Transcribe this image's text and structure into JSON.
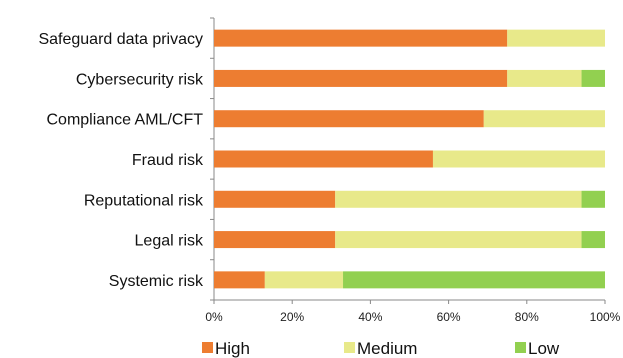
{
  "chart_data": {
    "type": "bar",
    "orientation": "horizontal",
    "stacked": true,
    "categories": [
      "Safeguard data privacy",
      "Cybersecurity risk",
      "Compliance AML/CFT",
      "Fraud risk",
      "Reputational risk",
      "Legal risk",
      "Systemic risk"
    ],
    "series": [
      {
        "name": "High",
        "color": "#ED7D31",
        "values": [
          75,
          75,
          69,
          56,
          31,
          31,
          13
        ]
      },
      {
        "name": "Medium",
        "color": "#E8E98A",
        "values": [
          25,
          19,
          31,
          44,
          63,
          63,
          20
        ]
      },
      {
        "name": "Low",
        "color": "#92D050",
        "values": [
          0,
          6,
          0,
          0,
          6,
          6,
          67
        ]
      }
    ],
    "xlim": [
      0,
      100
    ],
    "x_ticks": [
      "0%",
      "20%",
      "40%",
      "60%",
      "80%",
      "100%"
    ],
    "grid": false,
    "legend": "bottom"
  }
}
